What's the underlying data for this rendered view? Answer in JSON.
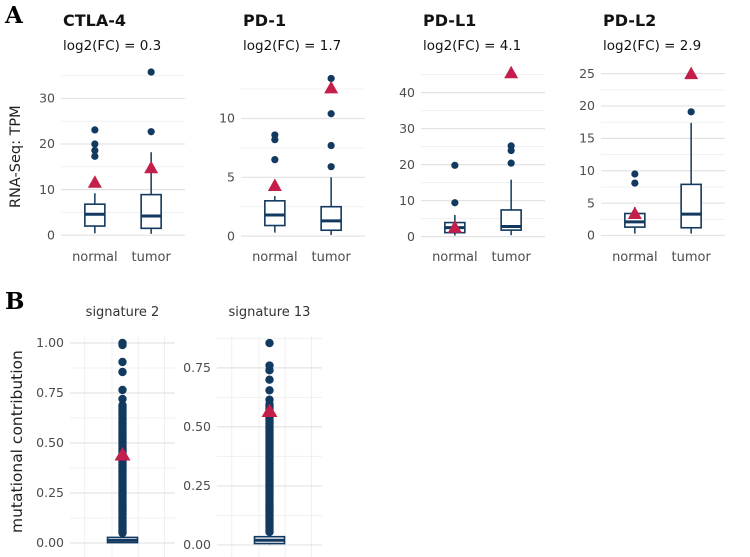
{
  "colors": {
    "navy": "#12395f",
    "crimson": "#c41e4a",
    "grid_major": "#e3e3e3",
    "grid_minor": "#f0f0f0",
    "axis_text": "#4d4d4d",
    "title_text": "#131313",
    "facet_title_text": "#333333",
    "box_fill": "#ffffff"
  },
  "chart_data": {
    "type": "boxplot-panels",
    "panels": [
      {
        "label": "A",
        "ylabel": "RNA-Seq: TPM",
        "x_categories": [
          "normal",
          "tumor"
        ],
        "charts": [
          {
            "title": "CTLA-4",
            "subtitle": "log2(FC) = 0.3",
            "ylim": [
              -1.5,
              38
            ],
            "ticks": [
              0,
              10,
              20,
              30
            ],
            "minor_ticks": [
              5,
              15,
              25,
              35
            ],
            "groups": [
              {
                "label": "normal",
                "whisker_low": 0.4,
                "q1": 2.0,
                "median": 4.6,
                "q3": 6.8,
                "whisker_high": 9.2,
                "outliers": [
                  17.3,
                  18.6,
                  20.0,
                  23.1
                ],
                "mean": 11.6
              },
              {
                "label": "tumor",
                "whisker_low": 0.3,
                "q1": 1.5,
                "median": 4.2,
                "q3": 8.9,
                "whisker_high": 18.2,
                "outliers": [
                  22.7,
                  35.8
                ],
                "mean": 14.8
              }
            ]
          },
          {
            "title": "PD-1",
            "subtitle": "log2(FC) = 1.7",
            "ylim": [
              -0.5,
              14.8
            ],
            "ticks": [
              0,
              5,
              10
            ],
            "minor_ticks": [
              2.5,
              7.5,
              12.5
            ],
            "groups": [
              {
                "label": "normal",
                "whisker_low": 0.3,
                "q1": 0.9,
                "median": 1.8,
                "q3": 3.0,
                "whisker_high": 3.4,
                "outliers": [
                  6.5,
                  8.2,
                  8.6
                ],
                "mean": 4.3
              },
              {
                "label": "tumor",
                "whisker_low": 0.1,
                "q1": 0.5,
                "median": 1.3,
                "q3": 2.5,
                "whisker_high": 5.0,
                "outliers": [
                  5.9,
                  7.7,
                  10.4,
                  13.4
                ],
                "mean": 12.6
              }
            ]
          },
          {
            "title": "PD-L1",
            "subtitle": "log2(FC) = 4.1",
            "ylim": [
              -1.5,
              48.5
            ],
            "ticks": [
              0,
              10,
              20,
              30,
              40
            ],
            "minor_ticks": [
              5,
              15,
              25,
              35,
              45
            ],
            "groups": [
              {
                "label": "normal",
                "whisker_low": 0.3,
                "q1": 1.1,
                "median": 2.5,
                "q3": 3.9,
                "whisker_high": 6.0,
                "outliers": [
                  9.4,
                  19.8
                ],
                "mean": 2.6
              },
              {
                "label": "tumor",
                "whisker_low": 0.4,
                "q1": 1.8,
                "median": 2.8,
                "q3": 7.4,
                "whisker_high": 15.8,
                "outliers": [
                  20.4,
                  23.9,
                  25.2
                ],
                "mean": 45.5
              }
            ]
          },
          {
            "title": "PD-L2",
            "subtitle": "log2(FC) = 2.9",
            "ylim": [
              -1.0,
              26.8
            ],
            "ticks": [
              0,
              5,
              10,
              15,
              20,
              25
            ],
            "minor_ticks": [
              2.5,
              7.5,
              12.5,
              17.5,
              22.5
            ],
            "groups": [
              {
                "label": "normal",
                "whisker_low": 0.3,
                "q1": 1.3,
                "median": 2.1,
                "q3": 3.4,
                "whisker_high": 4.4,
                "outliers": [
                  8.1,
                  9.5
                ],
                "mean": 3.4
              },
              {
                "label": "tumor",
                "whisker_low": 0.3,
                "q1": 1.2,
                "median": 3.3,
                "q3": 7.9,
                "whisker_high": 17.4,
                "outliers": [
                  19.1
                ],
                "mean": 25.0
              }
            ]
          }
        ]
      },
      {
        "label": "B",
        "ylabel": "mutational contribution",
        "charts": [
          {
            "title": "signature 2",
            "ylim": [
              -0.07,
              1.035
            ],
            "ticks": [
              0,
              0.25,
              0.5,
              0.75,
              1
            ],
            "tick_labels": [
              "0.00",
              "0.25",
              "0.50",
              "0.75",
              "1.00"
            ],
            "minor_ticks": [
              0.125,
              0.375,
              0.625,
              0.875
            ],
            "box": {
              "whisker_low": 0.0,
              "q1": 0.002,
              "median": 0.013,
              "q3": 0.028,
              "whisker_high": 0.045
            },
            "outlier_stripe": {
              "min": 0.05,
              "max": 0.69,
              "step": 0.009
            },
            "outliers": [
              0.72,
              0.765,
              0.855,
              0.905,
              0.99,
              1.0
            ],
            "mean": 0.44
          },
          {
            "title": "signature 13",
            "ylim": [
              -0.051,
              0.885
            ],
            "ticks": [
              0,
              0.25,
              0.5,
              0.75
            ],
            "tick_labels": [
              "0.00",
              "0.25",
              "0.50",
              "0.75"
            ],
            "minor_ticks": [
              0.125,
              0.375,
              0.625,
              0.875
            ],
            "box": {
              "whisker_low": 0.002,
              "q1": 0.006,
              "median": 0.02,
              "q3": 0.035,
              "whisker_high": 0.05
            },
            "outlier_stripe": {
              "min": 0.055,
              "max": 0.6,
              "step": 0.009
            },
            "outliers": [
              0.615,
              0.655,
              0.7,
              0.74,
              0.76,
              0.855
            ],
            "mean": 0.565
          }
        ]
      }
    ]
  }
}
